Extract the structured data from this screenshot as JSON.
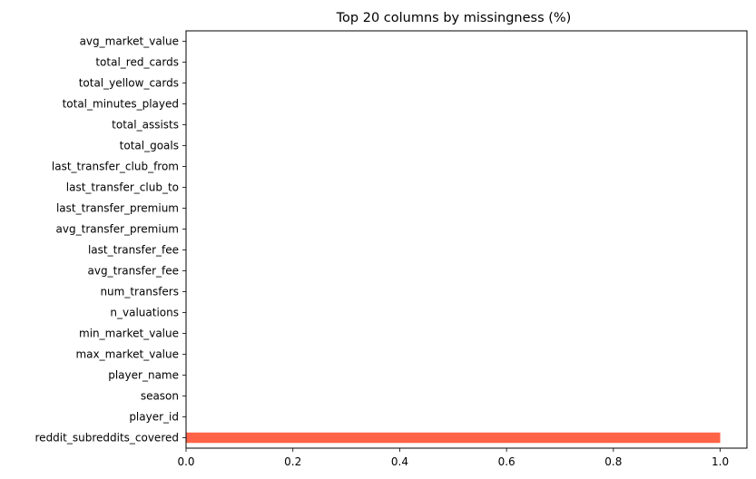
{
  "chart_data": {
    "type": "bar",
    "orientation": "horizontal",
    "title": "Top 20 columns by missingness (%)",
    "xlabel": "",
    "ylabel": "",
    "categories": [
      "avg_market_value",
      "total_red_cards",
      "total_yellow_cards",
      "total_minutes_played",
      "total_assists",
      "total_goals",
      "last_transfer_club_from",
      "last_transfer_club_to",
      "last_transfer_premium",
      "avg_transfer_premium",
      "last_transfer_fee",
      "avg_transfer_fee",
      "num_transfers",
      "n_valuations",
      "min_market_value",
      "max_market_value",
      "player_name",
      "season",
      "player_id",
      "reddit_subreddits_covered"
    ],
    "values": [
      0,
      0,
      0,
      0,
      0,
      0,
      0,
      0,
      0,
      0,
      0,
      0,
      0,
      0,
      0,
      0,
      0,
      0,
      0,
      1.0
    ],
    "xlim": [
      0,
      1.05
    ],
    "xticks": [
      "0.0",
      "0.2",
      "0.4",
      "0.6",
      "0.8",
      "1.0"
    ],
    "bar_color": "#ff6347",
    "grid": false
  }
}
